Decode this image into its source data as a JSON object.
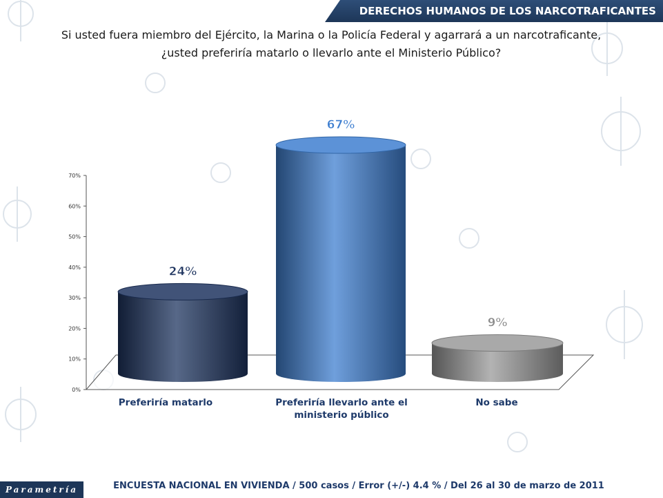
{
  "header": {
    "title": "DERECHOS HUMANOS DE LOS NARCOTRAFICANTES"
  },
  "question": {
    "line1": "Si usted fuera miembro del Ejército, la Marina o la Policía Federal y agarrará a un narcotraficante,",
    "line2": "¿usted preferiría matarlo o llevarlo ante el Ministerio Público?"
  },
  "chart_data": {
    "type": "bar",
    "categories": [
      "Preferiría matarlo",
      "Preferiría llevarlo ante el ministerio público",
      "No sabe"
    ],
    "category_lines": [
      [
        "Preferiría matarlo"
      ],
      [
        "Preferiría llevarlo ante el",
        "ministerio público"
      ],
      [
        "No sabe"
      ]
    ],
    "values": [
      24,
      67,
      9
    ],
    "data_labels": [
      "24%",
      "67%",
      "9%"
    ],
    "y_ticks": [
      "0%",
      "10%",
      "20%",
      "30%",
      "40%",
      "50%",
      "60%",
      "70%"
    ],
    "ylim": [
      0,
      70
    ],
    "bar_colors": [
      "#1f3560",
      "#3f7fd0",
      "#9a9a9a"
    ],
    "label_colors": [
      "#1f3560",
      "#3f7fd0",
      "#8a8a8a"
    ]
  },
  "footer": {
    "text": "ENCUESTA NACIONAL EN VIVIENDA / 500 casos / Error (+/-) 4.4 % / Del 26 al 30 de marzo de 2011"
  },
  "logo": {
    "text": "Parametría"
  }
}
